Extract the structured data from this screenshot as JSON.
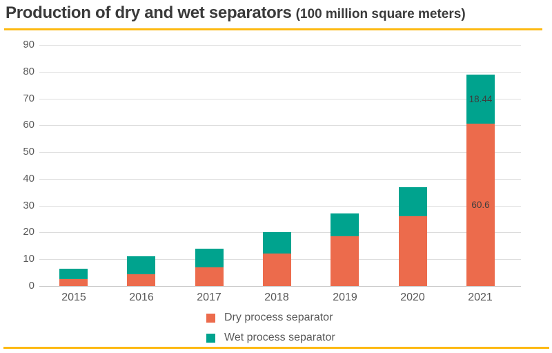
{
  "title": {
    "main": "Production of dry and wet separators",
    "unit": "(100 million square meters)"
  },
  "accent_line_color": "#FDB913",
  "chart_data": {
    "type": "bar",
    "stacked": true,
    "title": "Production of dry and wet separators (100 million square meters)",
    "xlabel": "",
    "ylabel": "",
    "ylim": [
      0,
      90
    ],
    "ytick_step": 10,
    "grid": true,
    "legend_position": "bottom",
    "categories": [
      "2015",
      "2016",
      "2017",
      "2018",
      "2019",
      "2020",
      "2021"
    ],
    "series": [
      {
        "name": "Dry process separator",
        "color": "#EC6B4C",
        "values": [
          2.5,
          4.5,
          7,
          12,
          18.5,
          26,
          60.6
        ],
        "data_labels": [
          null,
          null,
          null,
          null,
          null,
          null,
          "60.6"
        ]
      },
      {
        "name": "Wet process separator",
        "color": "#00A38E",
        "values": [
          4,
          6.5,
          7,
          8,
          8.5,
          11,
          18.44
        ],
        "data_labels": [
          null,
          null,
          null,
          null,
          null,
          null,
          "18.44"
        ]
      }
    ]
  }
}
